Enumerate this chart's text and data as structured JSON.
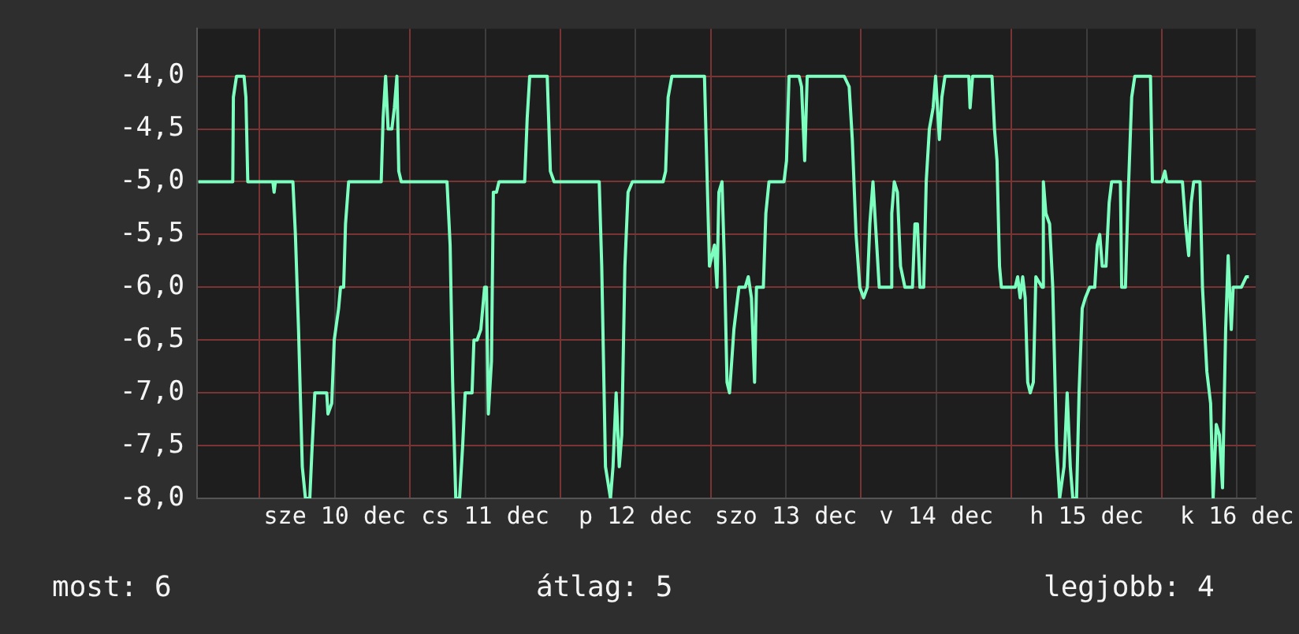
{
  "chart_data": {
    "type": "line",
    "color": "#7dffc0",
    "x": [
      "--12-09T14:12",
      "--12-09T19:42",
      "--12-09T19:48",
      "--12-09T20:18",
      "--12-09T21:30",
      "--12-09T21:48",
      "--12-09T22:06",
      "--12-10T02:06",
      "--12-10T02:18",
      "--12-10T02:30",
      "--12-10T05:18",
      "--12-10T05:42",
      "--12-10T06:12",
      "--12-10T06:48",
      "--12-10T07:18",
      "--12-10T08:00",
      "--12-10T08:18",
      "--12-10T08:48",
      "--12-10T10:42",
      "--12-10T10:54",
      "--12-10T11:30",
      "--12-10T11:54",
      "--12-10T12:36",
      "--12-10T12:54",
      "--12-10T13:24",
      "--12-10T13:42",
      "--12-10T14:12",
      "--12-10T19:24",
      "--12-10T19:42",
      "--12-10T20:06",
      "--12-10T20:30",
      "--12-10T21:06",
      "--12-10T21:30",
      "--12-10T21:54",
      "--12-10T22:12",
      "--12-10T22:36",
      "--12-11T05:54",
      "--12-11T06:24",
      "--12-11T06:48",
      "--12-11T07:18",
      "--12-11T07:54",
      "--12-11T08:24",
      "--12-11T08:48",
      "--12-11T09:54",
      "--12-11T10:12",
      "--12-11T10:42",
      "--12-11T11:18",
      "--12-11T11:54",
      "--12-11T12:12",
      "--12-11T12:30",
      "--12-11T13:00",
      "--12-11T13:18",
      "--12-11T13:48",
      "--12-11T14:12",
      "--12-11T18:18",
      "--12-11T18:42",
      "--12-11T19:06",
      "--12-11T21:54",
      "--12-11T22:24",
      "--12-11T23:00",
      "--12-12T06:12",
      "--12-12T06:36",
      "--12-12T07:12",
      "--12-12T08:00",
      "--12-12T08:24",
      "--12-12T08:54",
      "--12-12T09:24",
      "--12-12T09:48",
      "--12-12T10:18",
      "--12-12T10:48",
      "--12-12T11:30",
      "--12-12T16:24",
      "--12-12T16:48",
      "--12-12T17:12",
      "--12-12T17:48",
      "--12-12T23:00",
      "--12-12T23:24",
      "--12-12T23:48",
      "--12-13T00:36",
      "--12-13T01:00",
      "--12-13T01:18",
      "--12-13T01:48",
      "--12-13T02:12",
      "--12-13T02:36",
      "--12-13T03:00",
      "--12-13T03:42",
      "--12-13T04:30",
      "--12-13T05:30",
      "--12-13T06:00",
      "--12-13T06:30",
      "--12-13T07:00",
      "--12-13T07:18",
      "--12-13T08:24",
      "--12-13T08:48",
      "--12-13T09:18",
      "--12-13T11:42",
      "--12-13T12:06",
      "--12-13T12:30",
      "--12-13T14:06",
      "--12-13T14:30",
      "--12-13T15:00",
      "--12-13T15:24",
      "--12-13T21:18",
      "--12-13T22:06",
      "--12-13T22:36",
      "--12-13T23:12",
      "--12-13T23:48",
      "--12-14T00:24",
      "--12-14T01:00",
      "--12-14T01:24",
      "--12-14T01:54",
      "--12-14T02:24",
      "--12-14T02:54",
      "--12-14T04:48",
      "--12-14T04:54",
      "--12-14T05:18",
      "--12-14T05:48",
      "--12-14T06:18",
      "--12-14T07:00",
      "--12-14T08:12",
      "--12-14T08:36",
      "--12-14T09:00",
      "--12-14T09:24",
      "--12-14T10:00",
      "--12-14T10:24",
      "--12-14T10:54",
      "--12-14T11:30",
      "--12-14T11:54",
      "--12-14T12:30",
      "--12-14T12:54",
      "--12-14T13:24",
      "--12-14T17:12",
      "--12-14T17:24",
      "--12-14T17:48",
      "--12-14T20:54",
      "--12-14T21:18",
      "--12-14T21:42",
      "--12-14T22:06",
      "--12-14T22:24",
      "--12-15T00:36",
      "--12-15T01:00",
      "--12-15T01:24",
      "--12-15T01:48",
      "--12-15T02:12",
      "--12-15T02:36",
      "--12-15T03:00",
      "--12-15T03:30",
      "--12-15T03:54",
      "--12-15T04:54",
      "--12-15T05:06",
      "--12-15T05:30",
      "--12-15T06:06",
      "--12-15T06:36",
      "--12-15T07:12",
      "--12-15T07:42",
      "--12-15T08:24",
      "--12-15T08:54",
      "--12-15T09:24",
      "--12-15T09:48",
      "--12-15T10:24",
      "--12-15T10:48",
      "--12-15T11:18",
      "--12-15T11:48",
      "--12-15T12:30",
      "--12-15T13:18",
      "--12-15T13:42",
      "--12-15T14:06",
      "--12-15T14:30",
      "--12-15T15:06",
      "--12-15T15:36",
      "--12-15T16:00",
      "--12-15T17:24",
      "--12-15T17:36",
      "--12-15T18:12",
      "--12-15T18:36",
      "--12-15T19:12",
      "--12-15T19:42",
      "--12-15T22:12",
      "--12-15T22:30",
      "--12-16T00:00",
      "--12-16T00:30",
      "--12-16T00:48",
      "--12-16T03:18",
      "--12-16T03:48",
      "--12-16T04:18",
      "--12-16T04:42",
      "--12-16T05:06",
      "--12-16T06:06",
      "--12-16T06:30",
      "--12-16T07:12",
      "--12-16T07:48",
      "--12-16T08:12",
      "--12-16T08:42",
      "--12-16T09:12",
      "--12-16T09:42",
      "--12-16T10:12",
      "--12-16T10:36",
      "--12-16T11:06",
      "--12-16T11:24",
      "--12-16T12:42",
      "--12-16T13:30",
      "--12-16T13:54"
    ],
    "values": [
      -5,
      -5,
      -4.2,
      -4,
      -4,
      -4.2,
      -5,
      -5,
      -5.1,
      -5,
      -5,
      -5.5,
      -6.4,
      -7.7,
      -8,
      -8,
      -7.6,
      -7,
      -7,
      -7.2,
      -7.1,
      -6.5,
      -6.2,
      -6,
      -6,
      -5.4,
      -5,
      -5,
      -4.4,
      -4,
      -4.5,
      -4.5,
      -4.3,
      -4,
      -4.9,
      -5,
      -5,
      -5.6,
      -6.9,
      -8,
      -8,
      -7.5,
      -7,
      -7,
      -6.5,
      -6.5,
      -6.4,
      -6,
      -6,
      -7.2,
      -6.7,
      -5.1,
      -5.1,
      -5,
      -5,
      -4.4,
      -4,
      -4,
      -4.9,
      -5,
      -5,
      -5.8,
      -7.7,
      -8,
      -7.7,
      -7,
      -7.7,
      -7.4,
      -5.8,
      -5.1,
      -5,
      -5,
      -4.9,
      -4.2,
      -4,
      -4,
      -4.9,
      -5.8,
      -5.6,
      -6,
      -5.1,
      -5,
      -5.8,
      -6.9,
      -7,
      -6.4,
      -6,
      -6,
      -5.9,
      -6.1,
      -6.9,
      -6,
      -6,
      -5.3,
      -5,
      -5,
      -4.8,
      -4,
      -4,
      -4.1,
      -4.8,
      -4,
      -4,
      -4.1,
      -4.6,
      -5.5,
      -6,
      -6.1,
      -6,
      -5.4,
      -5,
      -5.5,
      -6,
      -6,
      -5.3,
      -5,
      -5.1,
      -5.8,
      -6,
      -6,
      -5.4,
      -5.4,
      -6,
      -6,
      -5,
      -4.5,
      -4.3,
      -4,
      -4.6,
      -4.2,
      -4,
      -4,
      -4.3,
      -4,
      -4,
      -4.5,
      -4.8,
      -5.8,
      -6,
      -6,
      -5.9,
      -6.1,
      -5.9,
      -6.1,
      -6.9,
      -7,
      -6.9,
      -5.9,
      -6,
      -5,
      -5.3,
      -5.4,
      -6,
      -7.5,
      -8,
      -7.7,
      -7,
      -7.7,
      -8,
      -8,
      -7,
      -6.2,
      -6.1,
      -6,
      -6,
      -5.6,
      -5.5,
      -5.8,
      -5.8,
      -5.2,
      -5,
      -5,
      -6,
      -6,
      -5.2,
      -4.2,
      -4,
      -4,
      -5,
      -5,
      -4.9,
      -5,
      -5,
      -5.4,
      -5.7,
      -5.2,
      -5,
      -5,
      -6,
      -6.8,
      -7.1,
      -8,
      -7.3,
      -7.4,
      -7.9,
      -6.4,
      -5.7,
      -6.4,
      -6,
      -6,
      -5.9,
      -5.9
    ],
    "xlim": [
      "--12-09T14:00",
      "--12-16T15:00"
    ],
    "xticks": [
      {
        "value": "--12-10T00:00",
        "label": null
      },
      {
        "value": "--12-10T12:00",
        "label": "sze 10 dec"
      },
      {
        "value": "--12-11T00:00",
        "label": null
      },
      {
        "value": "--12-11T12:00",
        "label": "cs 11 dec"
      },
      {
        "value": "--12-12T00:00",
        "label": null
      },
      {
        "value": "--12-12T12:00",
        "label": "p 12 dec"
      },
      {
        "value": "--12-13T00:00",
        "label": null
      },
      {
        "value": "--12-13T12:00",
        "label": "szo 13 dec"
      },
      {
        "value": "--12-14T00:00",
        "label": null
      },
      {
        "value": "--12-14T12:00",
        "label": "v 14 dec"
      },
      {
        "value": "--12-15T00:00",
        "label": null
      },
      {
        "value": "--12-15T12:00",
        "label": "h 15 dec"
      },
      {
        "value": "--12-16T00:00",
        "label": null
      },
      {
        "value": "--12-16T12:00",
        "label": "k 16 dec"
      }
    ],
    "ylim": [
      -8,
      -3.55
    ],
    "yticks": [
      {
        "value": -8,
        "label": "-8,0"
      },
      {
        "value": -7.5,
        "label": "-7,5"
      },
      {
        "value": -7,
        "label": "-7,0"
      },
      {
        "value": -6.5,
        "label": "-6,5"
      },
      {
        "value": -6,
        "label": "-6,0"
      },
      {
        "value": -5.5,
        "label": "-5,5"
      },
      {
        "value": -5,
        "label": "-5,0"
      },
      {
        "value": -4.5,
        "label": "-4,5"
      },
      {
        "value": -4,
        "label": "-4,0"
      }
    ],
    "grid": true,
    "legend": false,
    "marker": "none",
    "line_style": "solid",
    "annotations": [
      "most: 6",
      "átlag: 5",
      "legjobb: 4"
    ]
  }
}
